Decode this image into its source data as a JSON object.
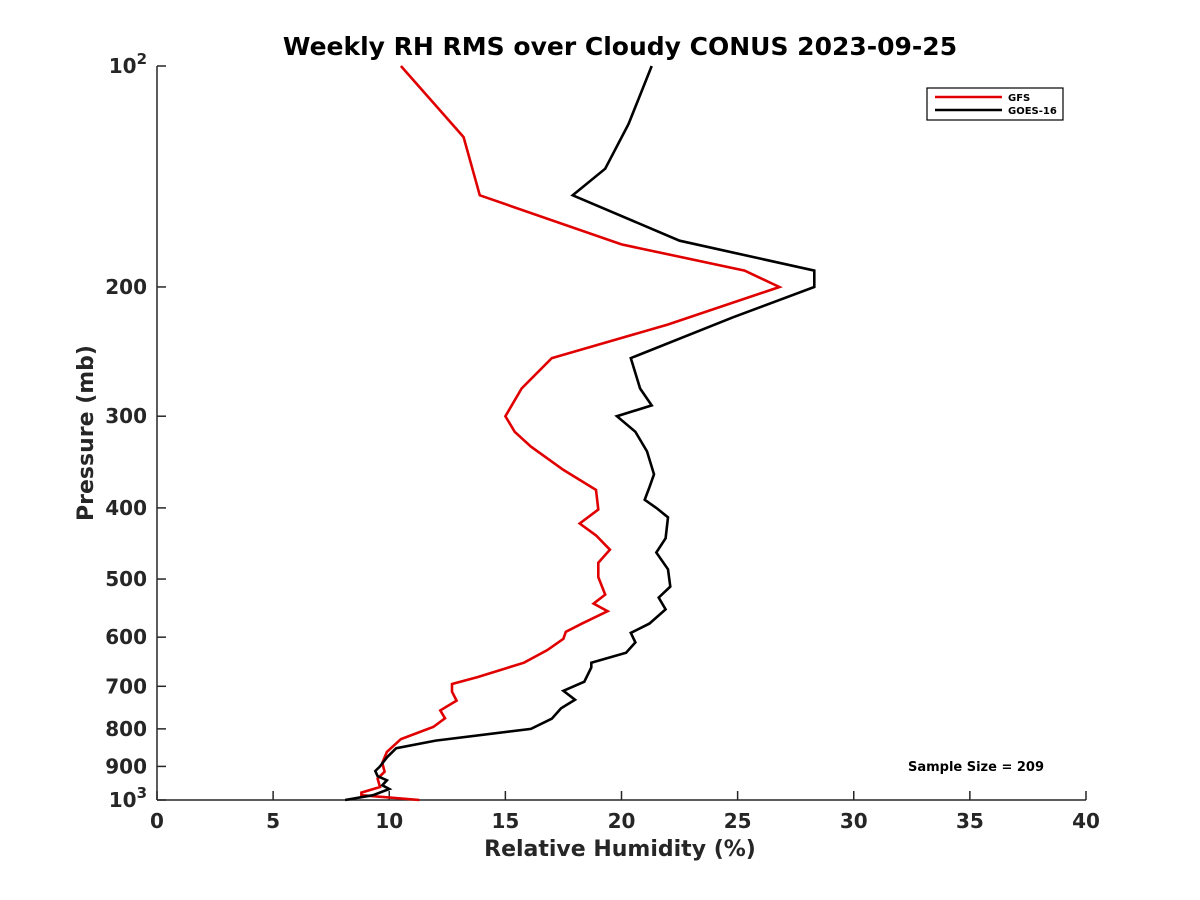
{
  "chart_data": {
    "type": "line",
    "title": "Weekly RH RMS over Cloudy CONUS 2023-09-25",
    "xlabel": "Relative Humidity (%)",
    "ylabel": "Pressure (mb)",
    "xlim": [
      0,
      40
    ],
    "ylim": [
      100,
      1000
    ],
    "y_scale": "log",
    "y_reversed": true,
    "x_ticks": [
      0,
      5,
      10,
      15,
      20,
      25,
      30,
      35,
      40
    ],
    "x_tick_labels": [
      "0",
      "5",
      "10",
      "15",
      "20",
      "25",
      "30",
      "35",
      "40"
    ],
    "y_ticks": [
      100,
      200,
      300,
      400,
      500,
      600,
      700,
      800,
      900,
      1000
    ],
    "y_tick_labels": [
      {
        "base": "10",
        "exp": "2"
      },
      {
        "text": "200"
      },
      {
        "text": "300"
      },
      {
        "text": "400"
      },
      {
        "text": "500"
      },
      {
        "text": "600"
      },
      {
        "text": "700"
      },
      {
        "text": "800"
      },
      {
        "text": "900"
      },
      {
        "base": "10",
        "exp": "3"
      }
    ],
    "grid": false,
    "legend_position": "top-right",
    "annotation": "Sample Size = 209",
    "series": [
      {
        "name": "GFS",
        "color": "#e00000",
        "points": [
          [
            10.5,
            100
          ],
          [
            13.2,
            125
          ],
          [
            13.9,
            150
          ],
          [
            20.0,
            175
          ],
          [
            25.3,
            190
          ],
          [
            26.8,
            200
          ],
          [
            22.0,
            225
          ],
          [
            17.0,
            250
          ],
          [
            15.7,
            275
          ],
          [
            15.0,
            300
          ],
          [
            15.4,
            315
          ],
          [
            16.1,
            330
          ],
          [
            17.5,
            355
          ],
          [
            18.9,
            378
          ],
          [
            19.0,
            402
          ],
          [
            18.2,
            420
          ],
          [
            18.9,
            436
          ],
          [
            19.5,
            456
          ],
          [
            19.0,
            475
          ],
          [
            19.0,
            497
          ],
          [
            19.3,
            525
          ],
          [
            18.8,
            540
          ],
          [
            19.4,
            553
          ],
          [
            18.3,
            575
          ],
          [
            17.6,
            590
          ],
          [
            17.5,
            603
          ],
          [
            16.8,
            625
          ],
          [
            15.8,
            650
          ],
          [
            13.8,
            680
          ],
          [
            12.7,
            695
          ],
          [
            12.7,
            712
          ],
          [
            12.9,
            732
          ],
          [
            12.2,
            755
          ],
          [
            12.4,
            774
          ],
          [
            11.9,
            795
          ],
          [
            10.5,
            826
          ],
          [
            9.9,
            860
          ],
          [
            9.7,
            890
          ],
          [
            9.8,
            915
          ],
          [
            9.5,
            935
          ],
          [
            9.6,
            960
          ],
          [
            8.8,
            977
          ],
          [
            8.8,
            985
          ],
          [
            11.3,
            1000
          ]
        ]
      },
      {
        "name": "GOES-16",
        "color": "#000000",
        "points": [
          [
            21.3,
            100
          ],
          [
            20.3,
            120
          ],
          [
            19.3,
            138
          ],
          [
            17.9,
            150
          ],
          [
            22.5,
            173
          ],
          [
            28.3,
            190
          ],
          [
            28.3,
            200
          ],
          [
            24.8,
            220
          ],
          [
            20.4,
            250
          ],
          [
            20.8,
            275
          ],
          [
            21.3,
            290
          ],
          [
            19.8,
            300
          ],
          [
            20.6,
            315
          ],
          [
            21.1,
            335
          ],
          [
            21.4,
            360
          ],
          [
            21.2,
            375
          ],
          [
            21.0,
            390
          ],
          [
            21.5,
            400
          ],
          [
            22.0,
            412
          ],
          [
            21.9,
            440
          ],
          [
            21.5,
            460
          ],
          [
            22.0,
            485
          ],
          [
            22.1,
            512
          ],
          [
            21.6,
            530
          ],
          [
            21.9,
            550
          ],
          [
            21.2,
            575
          ],
          [
            20.4,
            592
          ],
          [
            20.6,
            610
          ],
          [
            20.2,
            630
          ],
          [
            18.7,
            650
          ],
          [
            18.7,
            660
          ],
          [
            18.4,
            690
          ],
          [
            17.5,
            710
          ],
          [
            18.0,
            730
          ],
          [
            17.4,
            750
          ],
          [
            17.0,
            775
          ],
          [
            16.1,
            800
          ],
          [
            12.0,
            830
          ],
          [
            10.3,
            850
          ],
          [
            9.9,
            875
          ],
          [
            9.6,
            900
          ],
          [
            9.4,
            913
          ],
          [
            9.5,
            928
          ],
          [
            9.9,
            940
          ],
          [
            9.7,
            955
          ],
          [
            10.0,
            966
          ],
          [
            9.3,
            985
          ],
          [
            8.1,
            1000
          ]
        ]
      }
    ]
  }
}
